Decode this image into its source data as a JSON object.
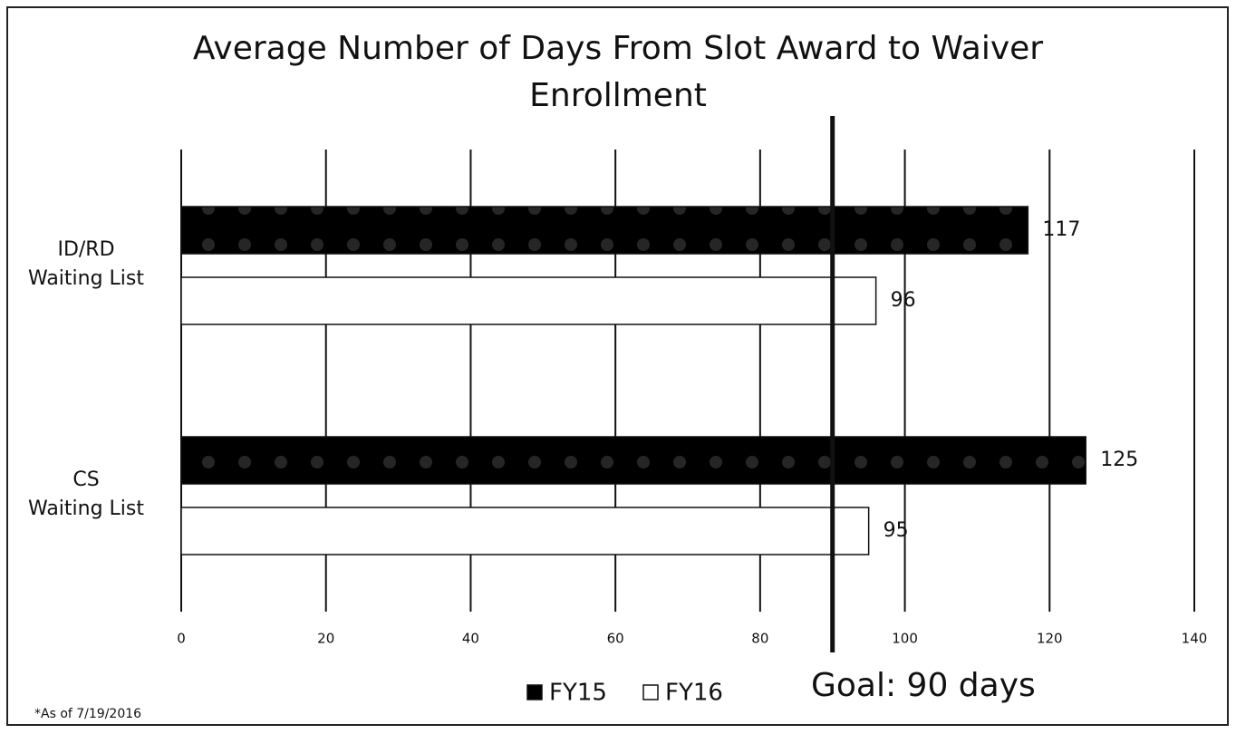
{
  "chart_data": {
    "type": "hbar",
    "title": "Average Number of Days From Slot Award to Waiver Enrollment",
    "categories": [
      "ID/RD\nWaiting List",
      "CS\nWaiting List"
    ],
    "series": [
      {
        "name": "FY15",
        "color": "#7a7a7a",
        "values": [
          117,
          125
        ]
      },
      {
        "name": "FY16",
        "color": "#ffffff",
        "values": [
          96,
          95
        ]
      }
    ],
    "xlim": [
      0,
      140
    ],
    "xticks": [
      0,
      20,
      40,
      60,
      80,
      100,
      120,
      140
    ],
    "grid": true,
    "goal": {
      "value": 90,
      "label": "Goal: 90 days"
    },
    "footnote": "*As of 7/19/2016"
  }
}
